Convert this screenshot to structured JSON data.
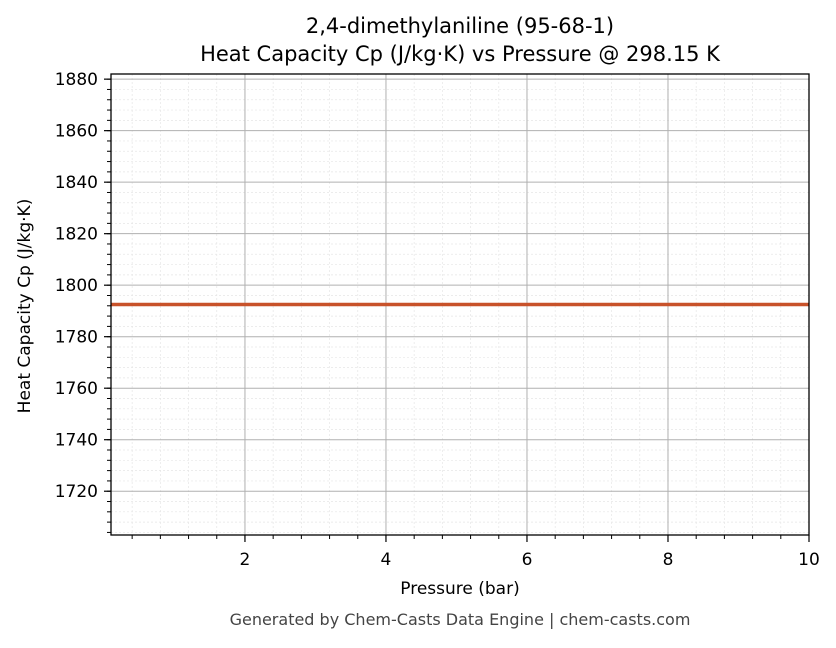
{
  "chart_data": {
    "type": "line",
    "title_line1": "2,4-dimethylaniline (95-68-1)",
    "title_line2": "Heat Capacity Cp (J/kg·K) vs Pressure @ 298.15 K",
    "xlabel": "Pressure (bar)",
    "ylabel": "Heat Capacity Cp (J/kg·K)",
    "xlim": [
      0.1,
      10
    ],
    "ylim": [
      1703,
      1882
    ],
    "x_ticks": [
      2,
      4,
      6,
      8,
      10
    ],
    "x_tick_labels": [
      "2",
      "4",
      "6",
      "8",
      "10"
    ],
    "x_minor_step": 0.4,
    "y_ticks": [
      1720,
      1740,
      1760,
      1780,
      1800,
      1820,
      1840,
      1860,
      1880
    ],
    "y_tick_labels": [
      "1720",
      "1740",
      "1760",
      "1780",
      "1800",
      "1820",
      "1840",
      "1860",
      "1880"
    ],
    "y_minor_step": 4,
    "grid": true,
    "series": [
      {
        "color": "#c8522a",
        "x": [
          0.1,
          10
        ],
        "y": [
          1792.5,
          1792.5
        ]
      }
    ]
  },
  "footer": "Generated by Chem-Casts Data Engine | chem-casts.com"
}
